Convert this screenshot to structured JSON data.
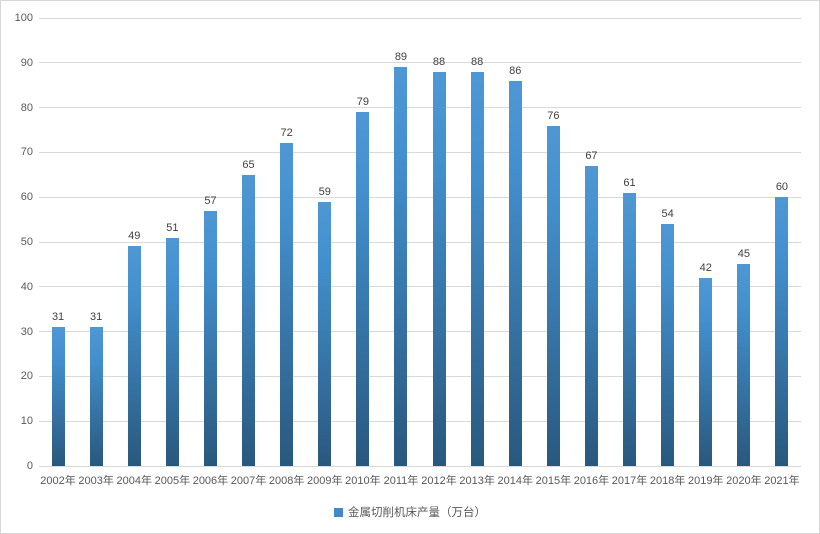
{
  "chart_data": {
    "type": "bar",
    "title": "",
    "categories": [
      "2002年",
      "2003年",
      "2004年",
      "2005年",
      "2006年",
      "2007年",
      "2008年",
      "2009年",
      "2010年",
      "2011年",
      "2012年",
      "2013年",
      "2014年",
      "2015年",
      "2016年",
      "2017年",
      "2018年",
      "2019年",
      "2020年",
      "2021年"
    ],
    "values": [
      31,
      31,
      49,
      51,
      57,
      65,
      72,
      59,
      79,
      89,
      88,
      88,
      86,
      76,
      67,
      61,
      54,
      42,
      45,
      60
    ],
    "series_name": "金属切削机床产量（万台）",
    "xlabel": "",
    "ylabel": "",
    "ylim": [
      0,
      100
    ],
    "yticks": [
      0,
      10,
      20,
      30,
      40,
      50,
      60,
      70,
      80,
      90,
      100
    ],
    "grid": "horizontal",
    "legend_position": "bottom",
    "colors": {
      "bar_gradient_top": "#4f97d4",
      "bar_gradient_bottom": "#29587d",
      "legend_marker": "#4389c8",
      "gridline": "#d9d9d9",
      "axis_text": "#595959",
      "value_label_text": "#404040",
      "chart_border": "#d7d7d7",
      "background": "#ffffff"
    }
  },
  "legend": {
    "label": "金属切削机床产量（万台）"
  }
}
